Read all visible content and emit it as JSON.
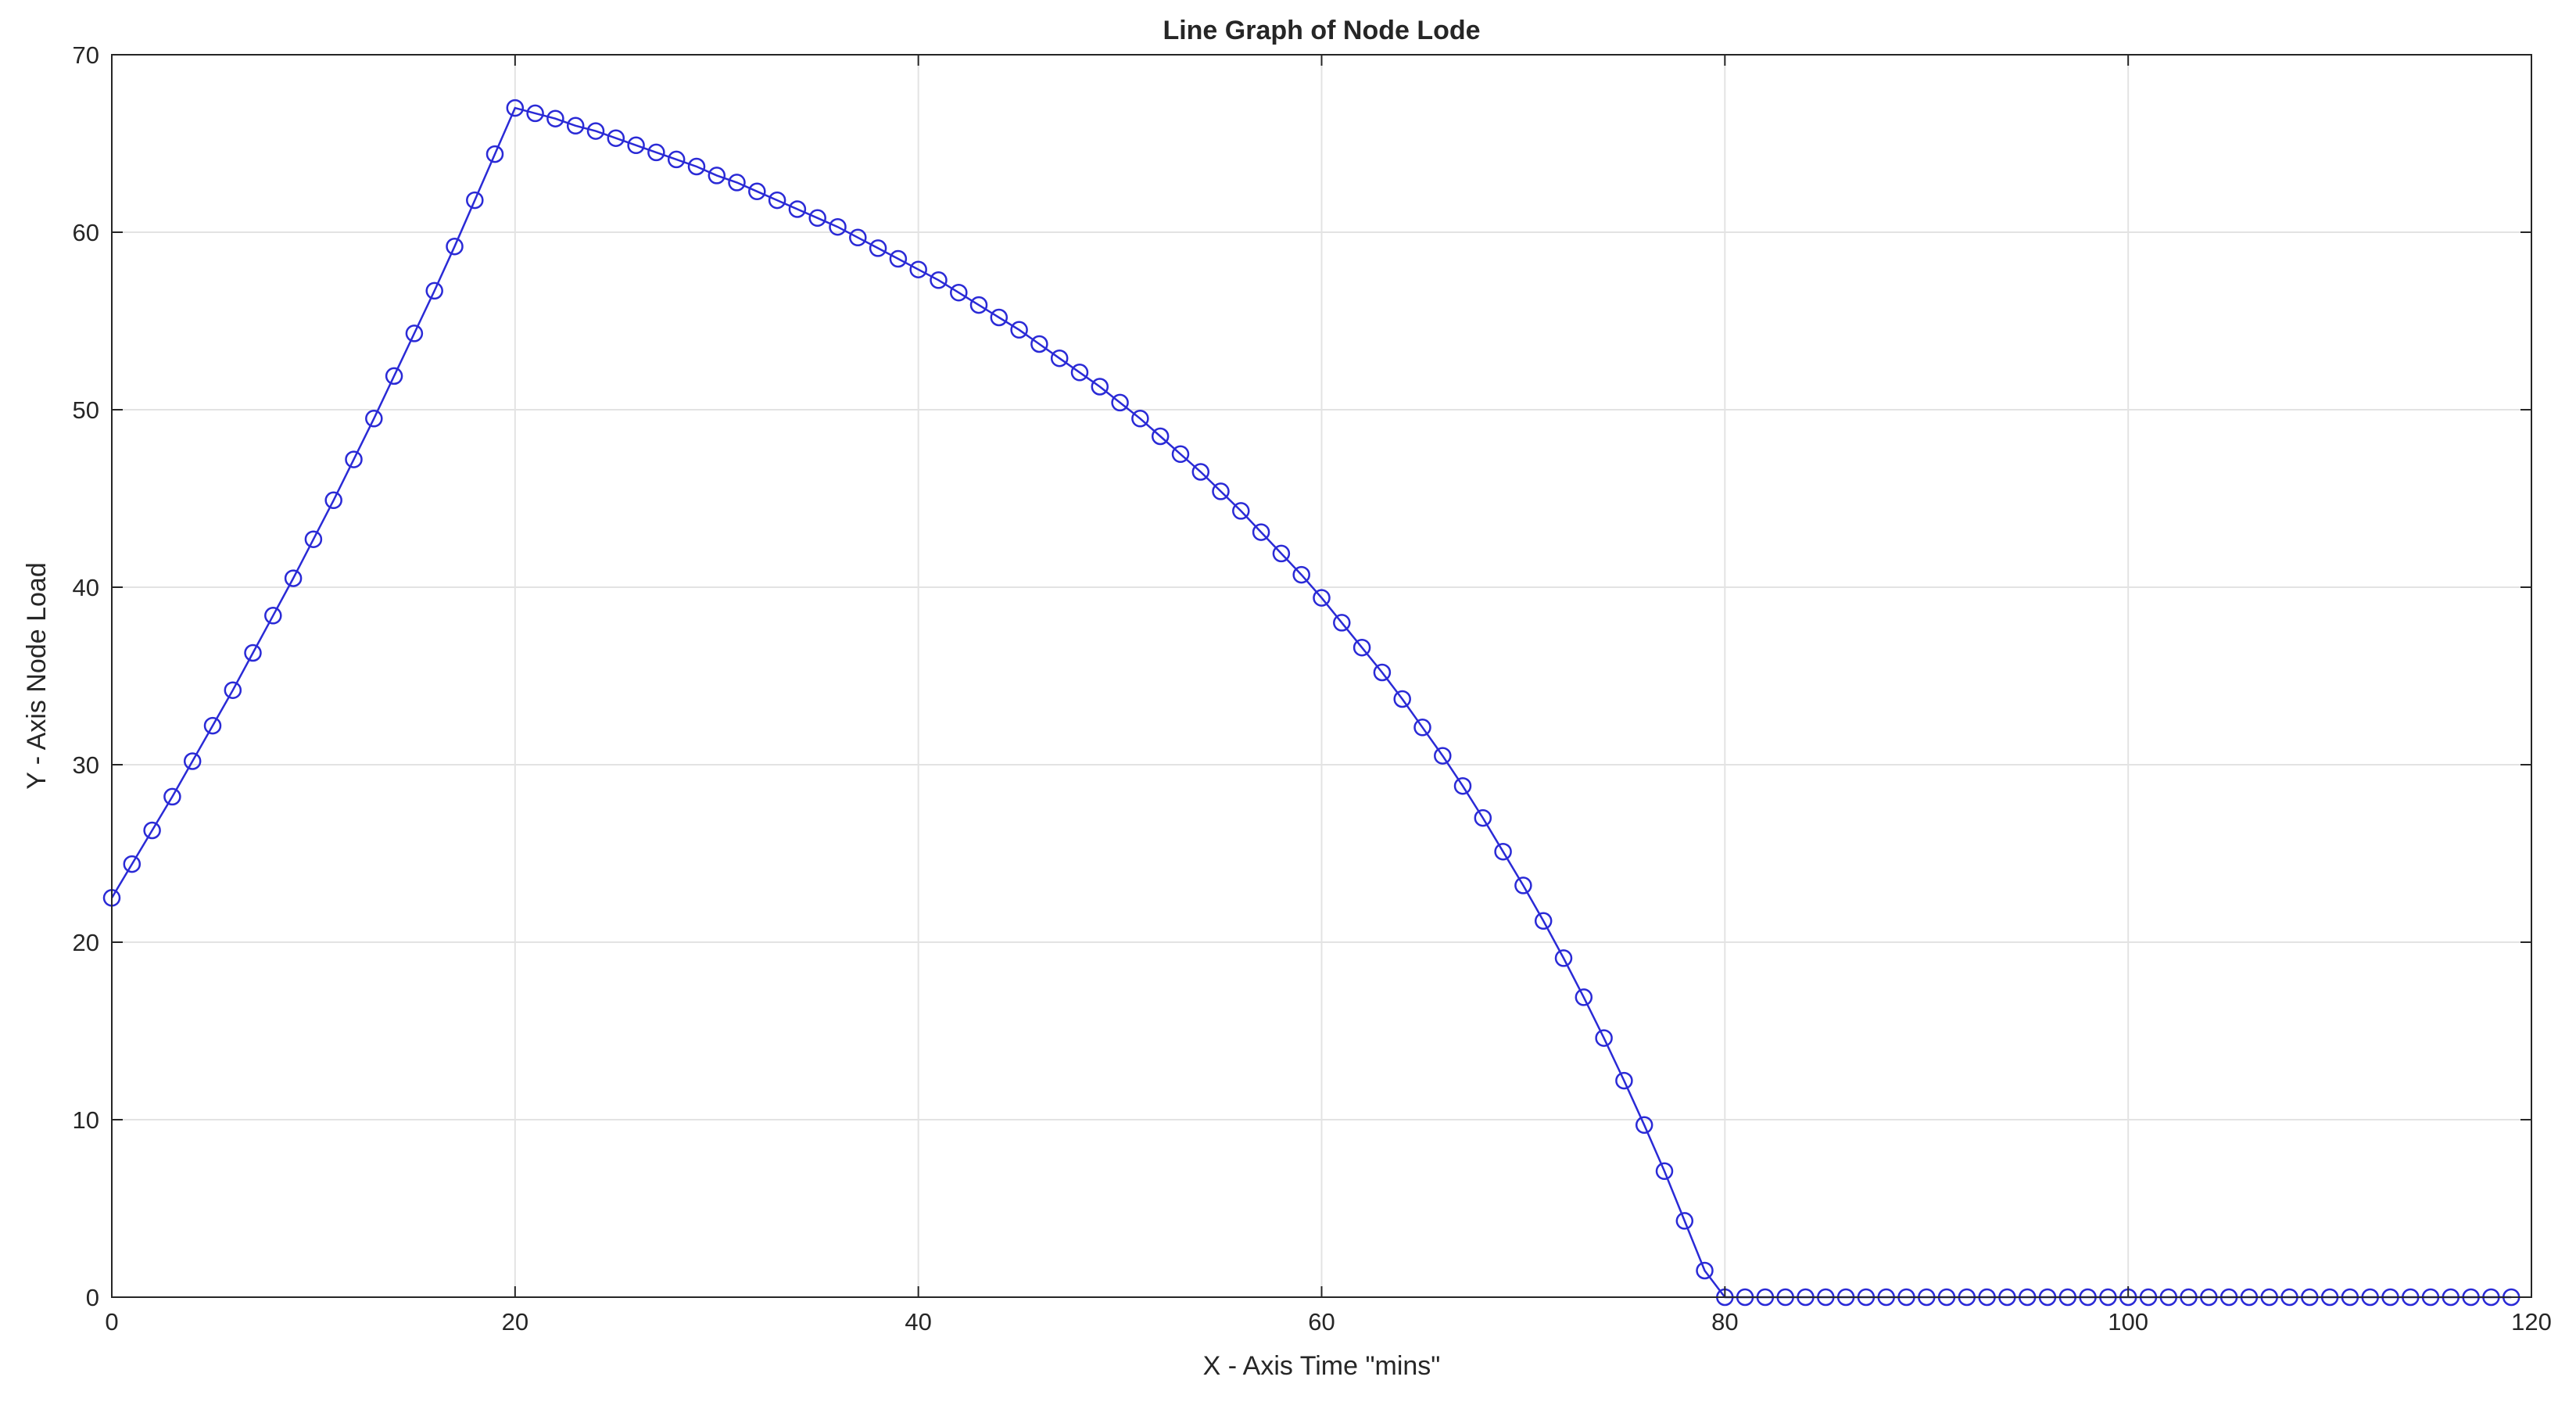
{
  "chart_data": {
    "type": "line",
    "title": "Line Graph of Node Lode",
    "xlabel": "X - Axis Time \"mins\"",
    "ylabel": "Y - Axis Node Load",
    "xlim": [
      0,
      120
    ],
    "ylim": [
      0,
      70
    ],
    "xticks": [
      0,
      20,
      40,
      60,
      80,
      100,
      120
    ],
    "yticks": [
      0,
      10,
      20,
      30,
      40,
      50,
      60,
      70
    ],
    "grid": true,
    "marker": "circle",
    "colors": {
      "series": "#2a2ad6",
      "grid": "#e3e3e3",
      "axis": "#262626"
    },
    "series": [
      {
        "x": [
          0,
          1,
          2,
          3,
          4,
          5,
          6,
          7,
          8,
          9,
          10,
          11,
          12,
          13,
          14,
          15,
          16,
          17,
          18,
          19,
          20,
          21,
          22,
          23,
          24,
          25,
          26,
          27,
          28,
          29,
          30,
          31,
          32,
          33,
          34,
          35,
          36,
          37,
          38,
          39,
          40,
          41,
          42,
          43,
          44,
          45,
          46,
          47,
          48,
          49,
          50,
          51,
          52,
          53,
          54,
          55,
          56,
          57,
          58,
          59,
          60,
          61,
          62,
          63,
          64,
          65,
          66,
          67,
          68,
          69,
          70,
          71,
          72,
          73,
          74,
          75,
          76,
          77,
          78,
          79,
          80,
          81,
          82,
          83,
          84,
          85,
          86,
          87,
          88,
          89,
          90,
          91,
          92,
          93,
          94,
          95,
          96,
          97,
          98,
          99,
          100,
          101,
          102,
          103,
          104,
          105,
          106,
          107,
          108,
          109,
          110,
          111,
          112,
          113,
          114,
          115,
          116,
          117,
          118,
          119
        ],
        "y": [
          22.5,
          24.4,
          26.3,
          28.2,
          30.2,
          32.2,
          34.2,
          36.3,
          38.4,
          40.5,
          42.7,
          44.9,
          47.2,
          49.5,
          51.9,
          54.3,
          56.7,
          59.2,
          61.8,
          64.4,
          67.0,
          66.7,
          66.4,
          66.0,
          65.7,
          65.3,
          64.9,
          64.5,
          64.1,
          63.7,
          63.2,
          62.8,
          62.3,
          61.8,
          61.3,
          60.8,
          60.3,
          59.7,
          59.1,
          58.5,
          57.9,
          57.3,
          56.6,
          55.9,
          55.2,
          54.5,
          53.7,
          52.9,
          52.1,
          51.3,
          50.4,
          49.5,
          48.5,
          47.5,
          46.5,
          45.4,
          44.3,
          43.1,
          41.9,
          40.7,
          39.4,
          38.0,
          36.6,
          35.2,
          33.7,
          32.1,
          30.5,
          28.8,
          27.0,
          25.1,
          23.2,
          21.2,
          19.1,
          16.9,
          14.6,
          12.2,
          9.7,
          7.1,
          4.3,
          1.5,
          0.0,
          0,
          0,
          0,
          0,
          0,
          0,
          0,
          0,
          0,
          0,
          0,
          0,
          0,
          0,
          0,
          0,
          0,
          0,
          0,
          0,
          0,
          0,
          0,
          0,
          0,
          0,
          0,
          0,
          0,
          0,
          0,
          0,
          0,
          0,
          0,
          0,
          0,
          0,
          0
        ]
      }
    ]
  }
}
